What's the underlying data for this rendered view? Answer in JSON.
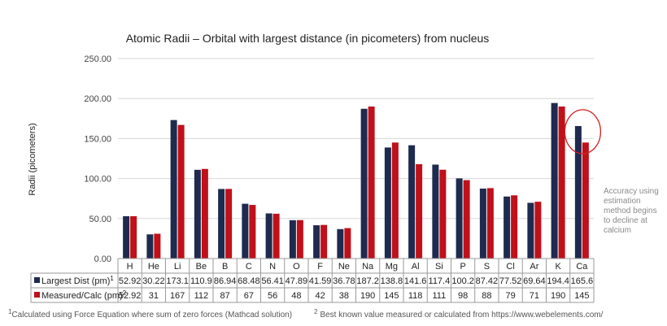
{
  "chart_data": {
    "type": "bar",
    "title": "Atomic Radii – Orbital with largest distance (in picometers) from nucleus",
    "ylabel": "Radii (picometers)",
    "xlabel": "",
    "ylim": [
      0,
      250
    ],
    "yticks": [
      "0.00",
      "50.00",
      "100.00",
      "150.00",
      "200.00",
      "250.00"
    ],
    "grid": true,
    "categories": [
      "H",
      "He",
      "Li",
      "Be",
      "B",
      "C",
      "N",
      "O",
      "F",
      "Ne",
      "Na",
      "Mg",
      "Al",
      "Si",
      "P",
      "S",
      "Cl",
      "Ar",
      "K",
      "Ca"
    ],
    "series": [
      {
        "name": "Largest Dist (pm)",
        "sup": "1",
        "color": "#1f2a4f",
        "values": [
          52.92,
          30.22,
          173.1,
          110.9,
          86.94,
          68.48,
          56.41,
          47.89,
          41.59,
          36.78,
          187.2,
          138.8,
          141.6,
          117.4,
          100.2,
          87.42,
          77.52,
          69.64,
          194.4,
          165.6
        ],
        "labels": [
          "52.92",
          "30.22",
          "173.1",
          "110.9",
          "86.94",
          "68.48",
          "56.41",
          "47.89",
          "41.59",
          "36.78",
          "187.2",
          "138.8",
          "141.6",
          "117.4",
          "100.2",
          "87.42",
          "77.52",
          "69.64",
          "194.4",
          "165.6"
        ]
      },
      {
        "name": "Measured/Calc (pm)",
        "sup": "2",
        "color": "#c0101a",
        "values": [
          52.92,
          31,
          167,
          112,
          87,
          67,
          56,
          48,
          42,
          38,
          190,
          145,
          118,
          111,
          98,
          88,
          79,
          71,
          190,
          145
        ],
        "labels": [
          "52.92",
          "31",
          "167",
          "112",
          "87",
          "67",
          "56",
          "48",
          "42",
          "38",
          "190",
          "145",
          "118",
          "111",
          "98",
          "88",
          "79",
          "71",
          "190",
          "145"
        ]
      }
    ],
    "legend": "table-left",
    "data_table": true,
    "annotation": {
      "text": [
        "Accuracy using",
        "estimation",
        "method begins",
        "to decline at",
        "calcium"
      ],
      "highlight_category": "Ca",
      "color": "#d42020"
    }
  },
  "footnotes": {
    "one_mark": "1",
    "one": "Calculated  using Force Equation where sum of zero forces (Mathcad solution)",
    "two_mark": "2",
    "two": "Best known value measured or calculated from https://www.webelements.com/"
  }
}
